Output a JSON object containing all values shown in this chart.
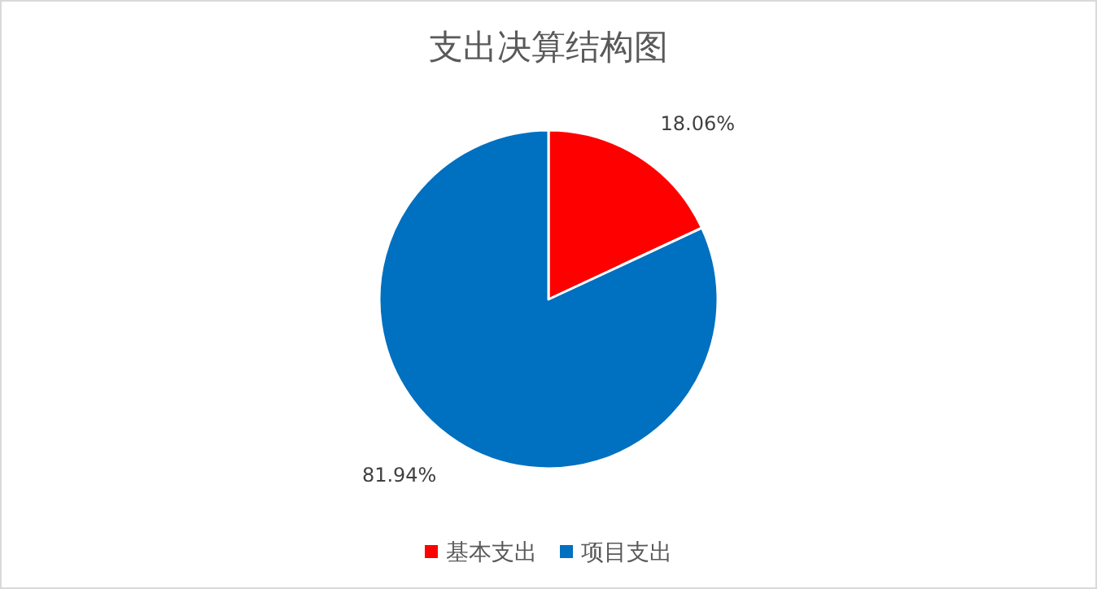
{
  "chart_data": {
    "type": "pie",
    "title": "支出决算结构图",
    "categories": [
      "基本支出",
      "项目支出"
    ],
    "values": [
      18.06,
      81.94
    ],
    "colors": [
      "#ff0000",
      "#0070c0"
    ],
    "value_labels": [
      "18.06%",
      "81.94%"
    ],
    "legend": "bottom"
  }
}
